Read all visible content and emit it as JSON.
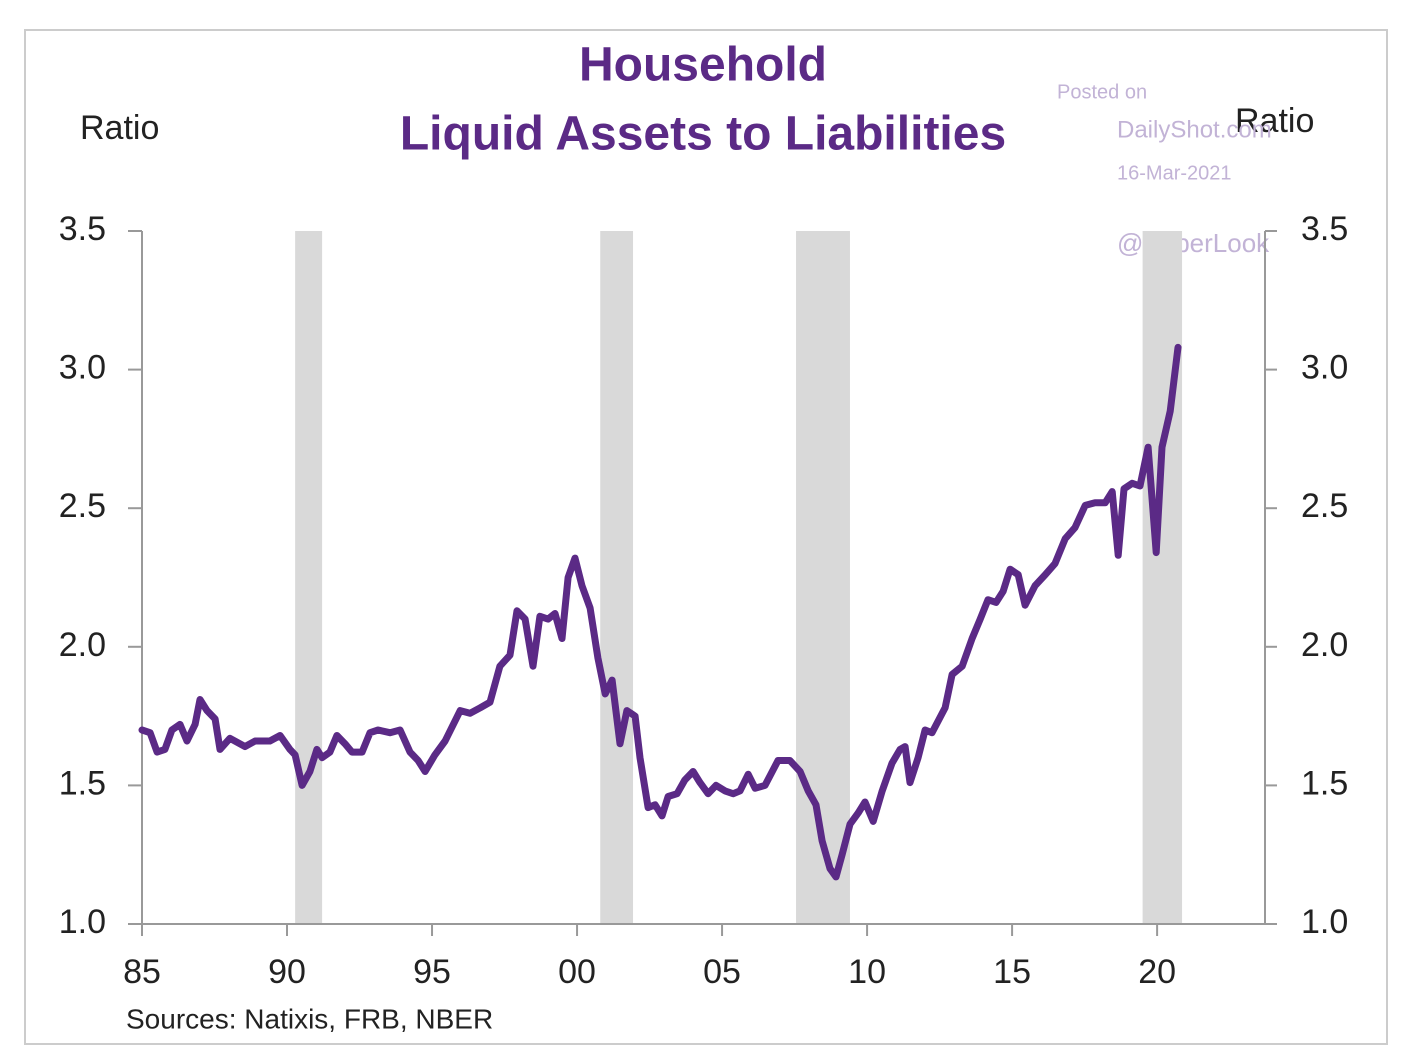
{
  "chart_data": {
    "type": "line",
    "title": [
      "Household",
      "Liquid Assets to Liabilities"
    ],
    "y_label": "Ratio",
    "y2_label": "Ratio",
    "source": "Sources: Natixis, FRB, NBER",
    "watermark": [
      "Posted on",
      "DailyShot.com",
      "16-Mar-2021",
      "@SoberLook"
    ],
    "color": "#5b2a86",
    "band_color": "#d9d9d9",
    "recessions": [
      [
        1990.28,
        1991.21
      ],
      [
        2000.8,
        2001.93
      ],
      [
        2007.55,
        2009.41
      ],
      [
        2019.5,
        2020.86
      ]
    ],
    "x": [
      1985.0,
      1985.28,
      1985.52,
      1985.79,
      1986.03,
      1986.31,
      1986.55,
      1986.83,
      1987.0,
      1987.24,
      1987.52,
      1987.69,
      1988.03,
      1988.55,
      1988.9,
      1989.41,
      1989.76,
      1990.1,
      1990.28,
      1990.52,
      1990.79,
      1991.03,
      1991.21,
      1991.48,
      1991.72,
      1992.0,
      1992.24,
      1992.59,
      1992.86,
      1993.14,
      1993.55,
      1993.9,
      1994.24,
      1994.52,
      1994.76,
      1995.1,
      1995.45,
      1995.97,
      1996.31,
      1996.66,
      1997.0,
      1997.34,
      1997.69,
      1997.93,
      1998.21,
      1998.48,
      1998.72,
      1999.0,
      1999.24,
      1999.48,
      1999.69,
      1999.93,
      2000.17,
      2000.45,
      2000.72,
      2000.97,
      2001.21,
      2001.48,
      2001.72,
      2002.0,
      2002.17,
      2002.45,
      2002.69,
      2002.93,
      2003.14,
      2003.45,
      2003.72,
      2004.0,
      2004.24,
      2004.52,
      2004.79,
      2005.1,
      2005.38,
      2005.62,
      2005.9,
      2006.14,
      2006.48,
      2006.93,
      2007.34,
      2007.69,
      2007.97,
      2008.24,
      2008.45,
      2008.72,
      2008.93,
      2009.14,
      2009.41,
      2009.69,
      2009.93,
      2010.21,
      2010.52,
      2010.86,
      2011.14,
      2011.31,
      2011.48,
      2011.76,
      2012.0,
      2012.24,
      2012.69,
      2012.93,
      2013.28,
      2013.62,
      2013.9,
      2014.17,
      2014.45,
      2014.69,
      2014.93,
      2015.21,
      2015.45,
      2015.79,
      2016.14,
      2016.48,
      2016.83,
      2017.17,
      2017.52,
      2017.86,
      2018.21,
      2018.45,
      2018.66,
      2018.86,
      2019.14,
      2019.41,
      2019.69,
      2019.97,
      2020.17,
      2020.45,
      2020.72
    ],
    "values": [
      1.7,
      1.69,
      1.62,
      1.63,
      1.7,
      1.72,
      1.66,
      1.72,
      1.81,
      1.77,
      1.74,
      1.63,
      1.67,
      1.64,
      1.66,
      1.66,
      1.68,
      1.63,
      1.61,
      1.5,
      1.55,
      1.63,
      1.6,
      1.62,
      1.68,
      1.65,
      1.62,
      1.62,
      1.69,
      1.7,
      1.69,
      1.7,
      1.62,
      1.59,
      1.55,
      1.61,
      1.66,
      1.77,
      1.76,
      1.78,
      1.8,
      1.93,
      1.97,
      2.13,
      2.1,
      1.93,
      2.11,
      2.1,
      2.12,
      2.03,
      2.25,
      2.32,
      2.22,
      2.14,
      1.96,
      1.83,
      1.88,
      1.65,
      1.77,
      1.75,
      1.6,
      1.42,
      1.43,
      1.39,
      1.46,
      1.47,
      1.52,
      1.55,
      1.51,
      1.47,
      1.5,
      1.48,
      1.47,
      1.48,
      1.54,
      1.49,
      1.5,
      1.59,
      1.59,
      1.55,
      1.48,
      1.43,
      1.3,
      1.2,
      1.17,
      1.25,
      1.36,
      1.4,
      1.44,
      1.37,
      1.48,
      1.58,
      1.63,
      1.64,
      1.51,
      1.6,
      1.7,
      1.69,
      1.78,
      1.9,
      1.93,
      2.03,
      2.1,
      2.17,
      2.16,
      2.2,
      2.28,
      2.26,
      2.15,
      2.22,
      2.26,
      2.3,
      2.39,
      2.43,
      2.51,
      2.52,
      2.52,
      2.56,
      2.33,
      2.57,
      2.59,
      2.58,
      2.72,
      2.34,
      2.72,
      2.85,
      3.08
    ],
    "xlim": [
      1985,
      2023.72
    ],
    "xticks": [
      {
        "value": 1985,
        "label": "85"
      },
      {
        "value": 1990,
        "label": "90"
      },
      {
        "value": 1995,
        "label": "95"
      },
      {
        "value": 2000,
        "label": "00"
      },
      {
        "value": 2005,
        "label": "05"
      },
      {
        "value": 2010,
        "label": "10"
      },
      {
        "value": 2015,
        "label": "15"
      },
      {
        "value": 2020,
        "label": "20"
      }
    ],
    "ylim": [
      1.0,
      3.5
    ],
    "yticks": [
      {
        "value": 1.0,
        "label": "1.0"
      },
      1.5,
      {
        "value": 2.0,
        "label": "2.0"
      },
      2.5,
      {
        "value": 3.0,
        "label": "3.0"
      },
      3.5
    ],
    "y2lim": [
      1.0,
      3.5
    ],
    "y2ticks": [
      {
        "value": 1.0,
        "label": "1.0"
      },
      1.5,
      {
        "value": 2.0,
        "label": "2.0"
      },
      2.5,
      {
        "value": 3.0,
        "label": "3.0"
      },
      3.5
    ]
  }
}
